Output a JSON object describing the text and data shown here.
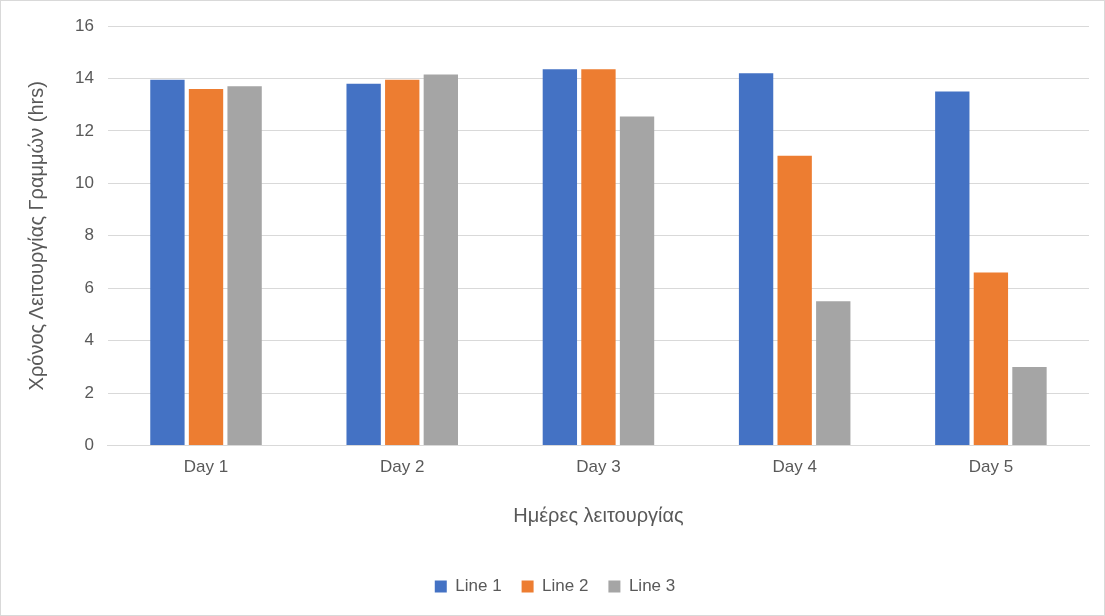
{
  "chart_data": {
    "type": "bar",
    "xlabel": "Ημέρες λειτουργίας",
    "ylabel": "Χρόνος Λειτουργίας Γραμμών (hrs)",
    "categories": [
      "Day 1",
      "Day 2",
      "Day 3",
      "Day 4",
      "Day 5"
    ],
    "series": [
      {
        "name": "Line 1",
        "color": "#4472c4",
        "values": [
          13.95,
          13.8,
          14.35,
          14.2,
          13.5
        ]
      },
      {
        "name": "Line 2",
        "color": "#ed7d31",
        "values": [
          13.6,
          13.95,
          14.35,
          11.05,
          6.6
        ]
      },
      {
        "name": "Line 3",
        "color": "#a5a5a5",
        "values": [
          13.7,
          14.15,
          12.55,
          5.5,
          3.0
        ]
      }
    ],
    "ylim": [
      0,
      16
    ],
    "yticks": [
      0,
      2,
      4,
      6,
      8,
      10,
      12,
      14,
      16
    ],
    "grid": "y",
    "legend": "bottom"
  }
}
